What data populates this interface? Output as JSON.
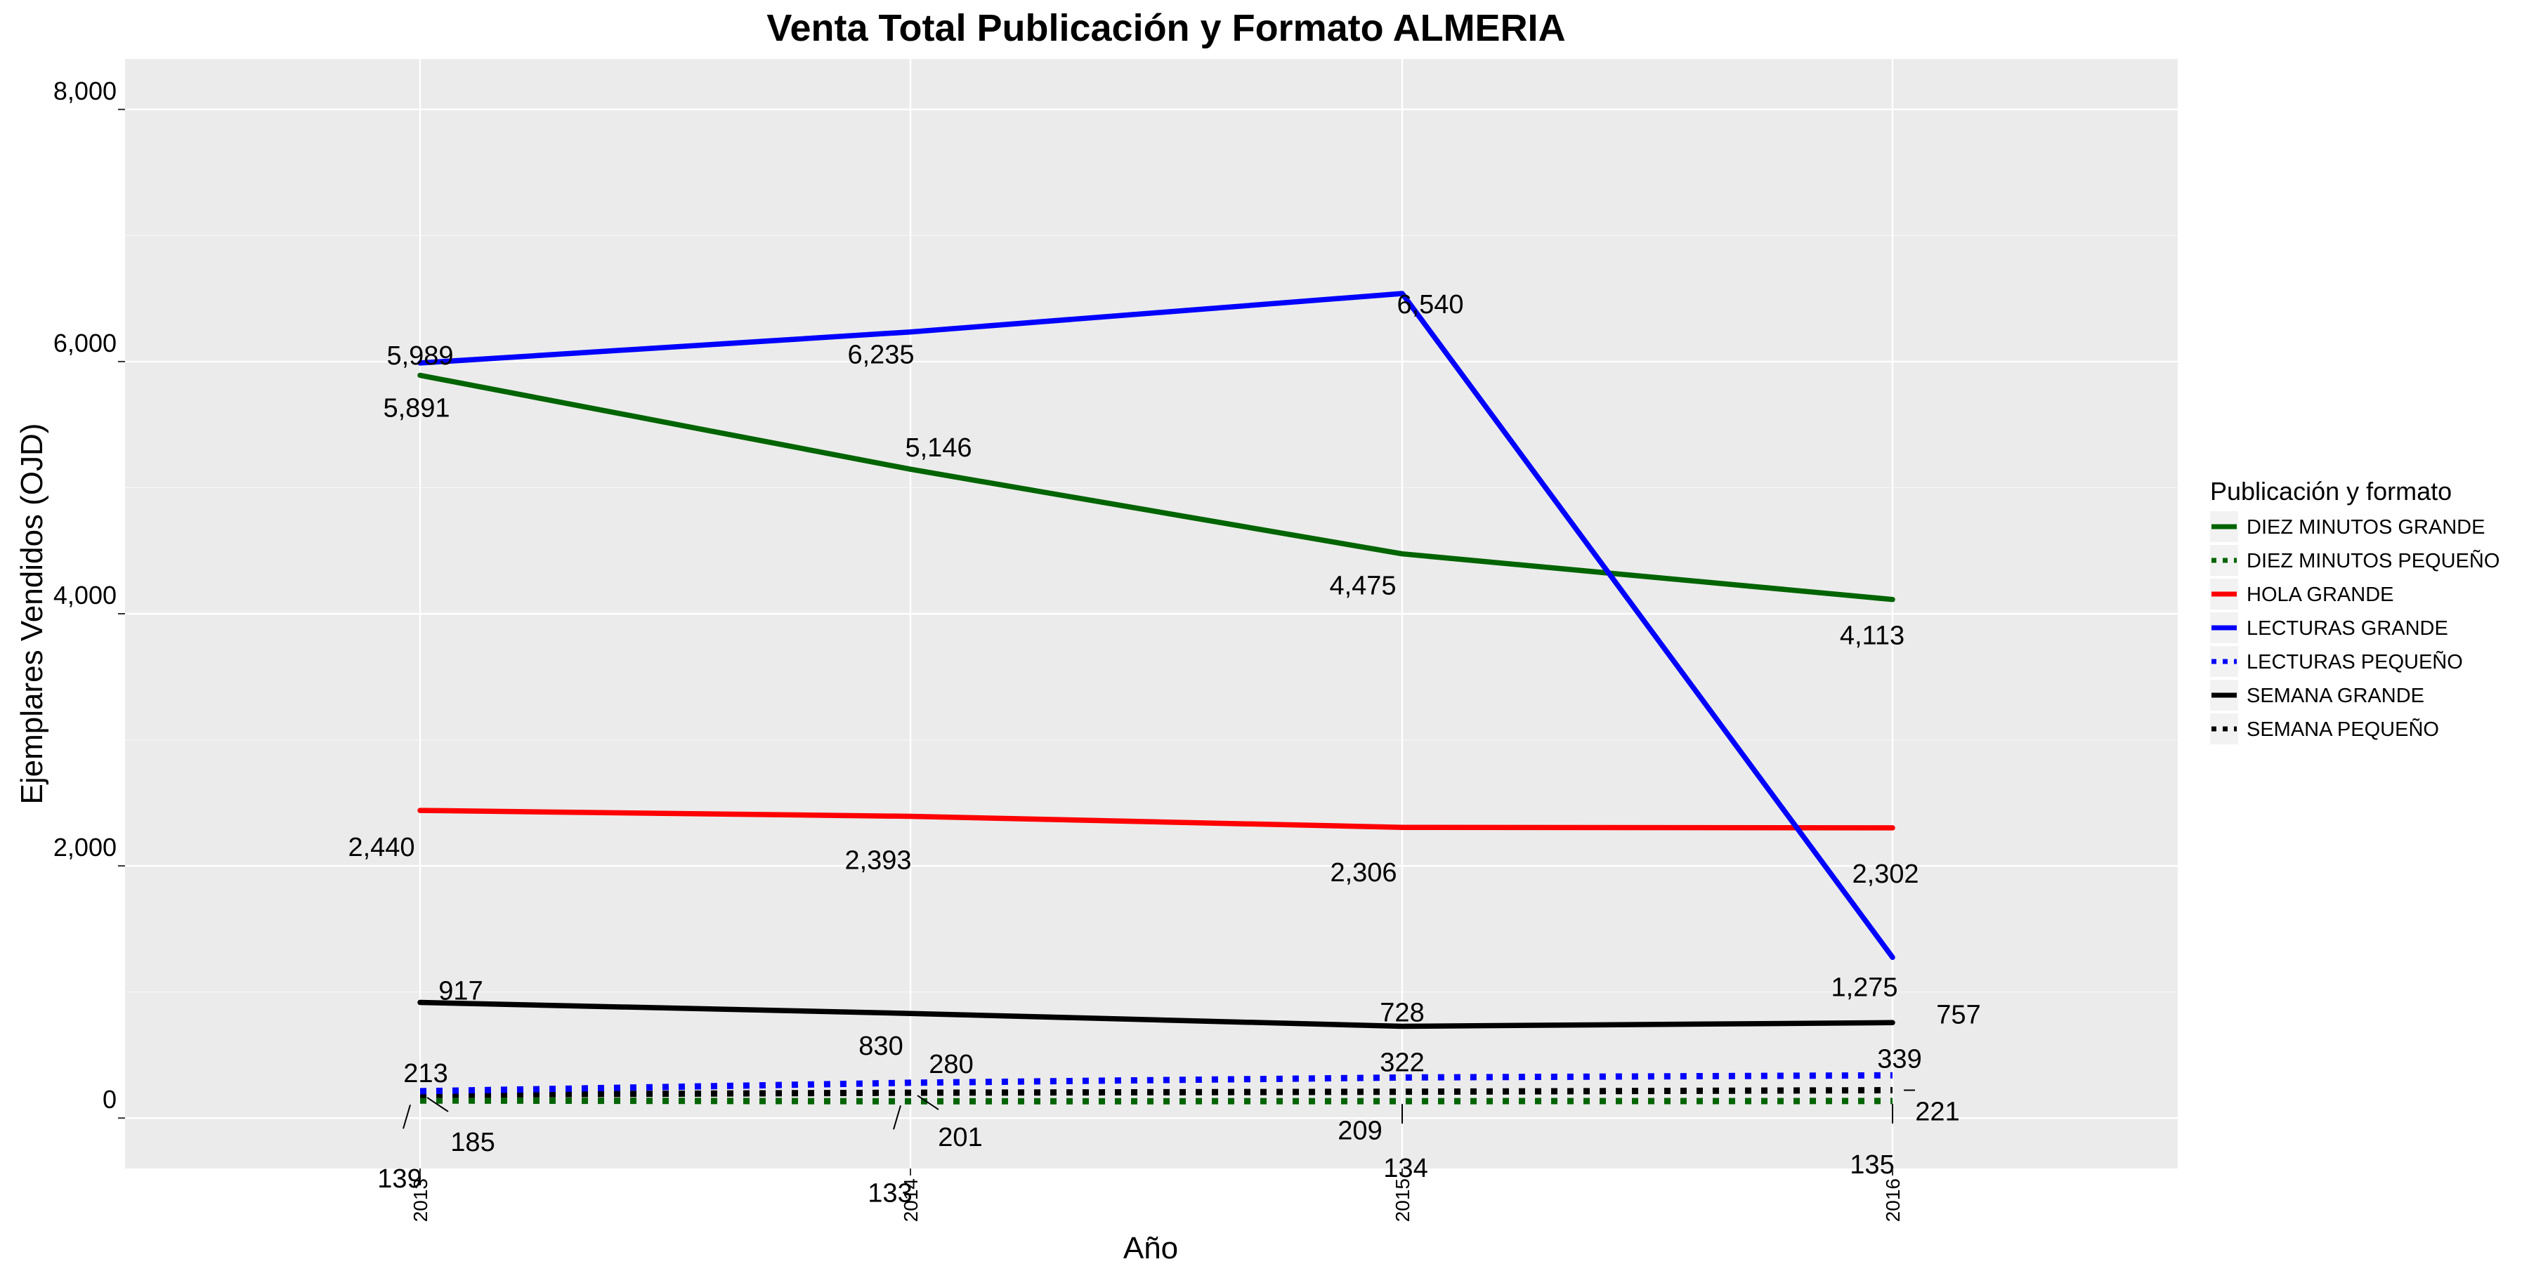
{
  "chart_data": {
    "type": "line",
    "title": "Venta Total Publicación y Formato  ALMERIA",
    "xlabel": "Año",
    "ylabel": "Ejemplares Vendidos (OJD)",
    "x": [
      "2013",
      "2014",
      "2015",
      "2016"
    ],
    "ylim": [
      -400,
      8400
    ],
    "yticks": [
      0,
      2000,
      4000,
      6000,
      8000
    ],
    "ytick_labels": [
      "0",
      "2,000",
      "4,000",
      "6,000",
      "8,000"
    ],
    "grid": true,
    "legend": {
      "title": "Publicación y formato",
      "position": "right"
    },
    "series": [
      {
        "name": "DIEZ MINUTOS GRANDE",
        "values": [
          5891,
          5146,
          4475,
          4113
        ],
        "labels": [
          "5,891",
          "5,146",
          "4,475",
          "4,113"
        ],
        "color": "#006400",
        "dash": "solid"
      },
      {
        "name": "DIEZ MINUTOS PEQUEÑO",
        "values": [
          139,
          133,
          134,
          135
        ],
        "labels": [
          "139",
          "133",
          "134",
          "135"
        ],
        "color": "#006400",
        "dash": "dotted"
      },
      {
        "name": "HOLA GRANDE",
        "values": [
          2440,
          2393,
          2306,
          2302
        ],
        "labels": [
          "2,440",
          "2,393",
          "2,306",
          "2,302"
        ],
        "color": "#ff0000",
        "dash": "solid"
      },
      {
        "name": "LECTURAS GRANDE",
        "values": [
          5989,
          6235,
          6540,
          1275
        ],
        "labels": [
          "5,989",
          "6,235",
          "6,540",
          "1,275"
        ],
        "color": "#0000ff",
        "dash": "solid"
      },
      {
        "name": "LECTURAS PEQUEÑO",
        "values": [
          213,
          280,
          322,
          339
        ],
        "labels": [
          "213",
          "280",
          "322",
          "339"
        ],
        "color": "#0000ff",
        "dash": "dotted"
      },
      {
        "name": "SEMANA GRANDE",
        "values": [
          917,
          830,
          728,
          757
        ],
        "labels": [
          "917",
          "830",
          "728",
          "757"
        ],
        "color": "#000000",
        "dash": "solid"
      },
      {
        "name": "SEMANA PEQUEÑO",
        "values": [
          185,
          201,
          209,
          221
        ],
        "labels": [
          "185",
          "201",
          "209",
          "221"
        ],
        "color": "#000000",
        "dash": "dotted"
      }
    ]
  }
}
